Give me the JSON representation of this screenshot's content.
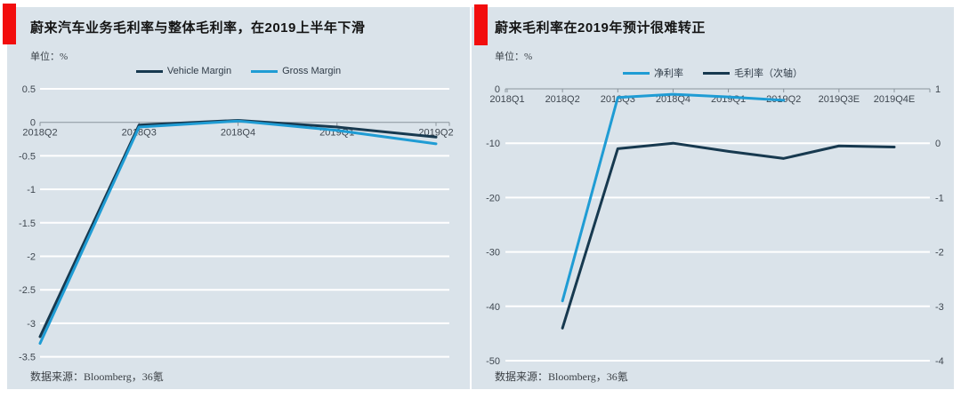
{
  "page": {
    "background": "#ffffff",
    "panel_background": "#dae3ea",
    "accent_red": "#f20d0d",
    "gridline_color": "#ffffff",
    "axis_color": "#8a949c",
    "navy": "#17394f",
    "light_blue": "#1f9cd4"
  },
  "chart_data": [
    {
      "type": "line",
      "title": "蔚来汽车业务毛利率与整体毛利率，在2019上半年下滑",
      "unit": "单位：%",
      "source": "数据来源：Bloomberg，36氪",
      "legend_position": "top",
      "grid": true,
      "categories": [
        "2018Q2",
        "2018Q3",
        "2018Q4",
        "2019Q1",
        "2019Q2"
      ],
      "series": [
        {
          "name": "Vehicle Margin",
          "color": "#17394f",
          "axis": "left",
          "values": [
            -3.2,
            -0.04,
            0.03,
            -0.07,
            -0.22
          ]
        },
        {
          "name": "Gross Margin",
          "color": "#1f9cd4",
          "axis": "left",
          "values": [
            -3.3,
            -0.07,
            0.02,
            -0.12,
            -0.32
          ]
        }
      ],
      "y_left": {
        "min": -3.5,
        "max": 0.5,
        "step": 0.5,
        "tick_labels": [
          "0.5",
          "0",
          "-0.5",
          "-1",
          "-1.5",
          "-2",
          "-2.5",
          "-3",
          "-3.5"
        ]
      }
    },
    {
      "type": "line",
      "title": "蔚来毛利率在2019年预计很难转正",
      "unit": "单位：%",
      "source": "数据来源：Bloomberg，36氪",
      "legend_position": "top",
      "grid": true,
      "categories": [
        "2018Q1",
        "2018Q2",
        "2018Q3",
        "2018Q4",
        "2019Q1",
        "2019Q2",
        "2019Q3E",
        "2019Q4E"
      ],
      "series": [
        {
          "name": "净利率",
          "color": "#1f9cd4",
          "axis": "left",
          "values": [
            null,
            -39,
            -1.6,
            -1.0,
            -1.5,
            -2.1,
            null,
            null
          ]
        },
        {
          "name": "毛利率（次轴）",
          "color": "#17394f",
          "axis": "right",
          "values": [
            null,
            -3.4,
            -0.1,
            0.0,
            -0.15,
            -0.28,
            -0.05,
            -0.07
          ]
        }
      ],
      "y_left": {
        "min": -50,
        "max": 0,
        "step": 10,
        "tick_labels": [
          "0",
          "-10",
          "-20",
          "-30",
          "-40",
          "-50"
        ]
      },
      "y_right": {
        "min": -4,
        "max": 1,
        "step": 1,
        "tick_labels": [
          "1",
          "0",
          "-1",
          "-2",
          "-3",
          "-4"
        ]
      }
    }
  ]
}
